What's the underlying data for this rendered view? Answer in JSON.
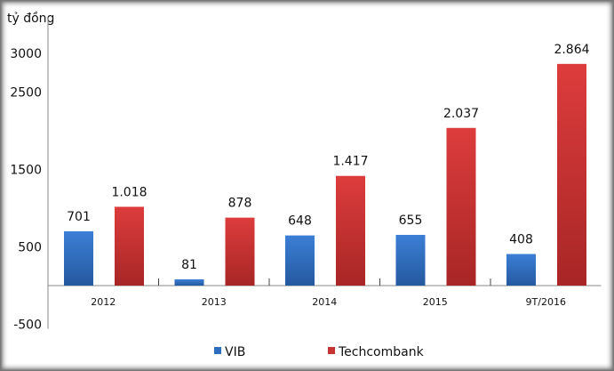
{
  "chart_data": {
    "type": "bar",
    "ylabel": "tỷ đồng",
    "categories": [
      "2012",
      "2013",
      "2014",
      "2015",
      "9T/2016"
    ],
    "series": [
      {
        "name": "VIB",
        "values": [
          701,
          81,
          648,
          655,
          408
        ],
        "color": "#2e6dbf",
        "labels": [
          "701",
          "81",
          "648",
          "655",
          "408"
        ]
      },
      {
        "name": "Techcombank",
        "values": [
          1018,
          878,
          1417,
          2037,
          2864
        ],
        "color": "#c93232",
        "labels": [
          "1.018",
          "878",
          "1.417",
          "2.037",
          "2.864"
        ]
      }
    ],
    "yticks": [
      "3000",
      "2500",
      "1500",
      "500",
      "-500"
    ],
    "ytick_values": [
      3000,
      2500,
      1500,
      500,
      -500
    ],
    "ylim": [
      -500,
      3500
    ],
    "grid": false,
    "legend": "bottom"
  }
}
